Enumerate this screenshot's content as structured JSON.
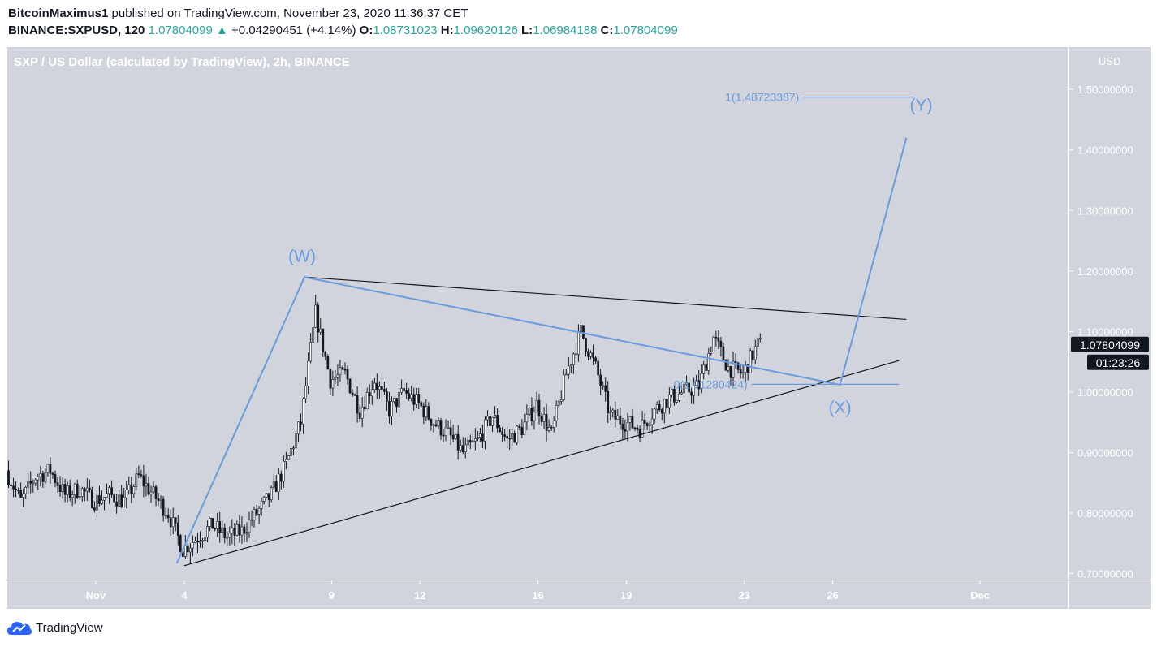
{
  "header": {
    "author": "BitcoinMaximus1",
    "published_text": "published on TradingView.com, November 23, 2020 11:36:37 CET",
    "symbol": "BINANCE:SXPUSD, 120",
    "last": "1.07804099",
    "change": "+0.04290451 (+4.14%)",
    "o_label": "O:",
    "o": "1.08731023",
    "h_label": "H:",
    "h": "1.09620126",
    "l_label": "L:",
    "l": "1.06984188",
    "c_label": "C:",
    "c": "1.07804099"
  },
  "footer": {
    "brand": "TradingView"
  },
  "colors": {
    "plot_bg": "#d1d4dc",
    "axis_bg": "#d1d4dc",
    "wave": "#6a9bde",
    "trendline": "#131722",
    "candles": "#131722",
    "label_bg": "#131722"
  },
  "chart_data": {
    "type": "candlestick",
    "title": "SXP / US Dollar (calculated by TradingView), 2h, BINANCE",
    "y_unit": "USD",
    "ylim": [
      0.69,
      1.57
    ],
    "y_ticks": [
      0.7,
      0.8,
      0.9,
      1.0,
      1.1,
      1.2,
      1.3,
      1.4,
      1.5
    ],
    "y_tick_labels": [
      "0.70000000",
      "0.80000000",
      "0.90000000",
      "1.00000000",
      "1.10000000",
      "1.20000000",
      "1.30000000",
      "1.40000000",
      "1.50000000"
    ],
    "x_range": [
      "2020-10-29",
      "2020-12-04"
    ],
    "x_ticks": [
      {
        "date": "2020-11-01",
        "label": "Nov"
      },
      {
        "date": "2020-11-04",
        "label": "4"
      },
      {
        "date": "2020-11-09",
        "label": "9"
      },
      {
        "date": "2020-11-12",
        "label": "12"
      },
      {
        "date": "2020-11-16",
        "label": "16"
      },
      {
        "date": "2020-11-19",
        "label": "19"
      },
      {
        "date": "2020-11-23",
        "label": "23"
      },
      {
        "date": "2020-11-26",
        "label": "26"
      },
      {
        "date": "2020-12-01",
        "label": "Dec"
      }
    ],
    "price_path": [
      [
        "2020-10-29 00:00",
        0.87
      ],
      [
        "2020-10-29 12:00",
        0.82
      ],
      [
        "2020-10-30 00:00",
        0.86
      ],
      [
        "2020-10-30 12:00",
        0.87
      ],
      [
        "2020-10-31 00:00",
        0.83
      ],
      [
        "2020-10-31 12:00",
        0.84
      ],
      [
        "2020-11-01 00:00",
        0.82
      ],
      [
        "2020-11-01 12:00",
        0.83
      ],
      [
        "2020-11-02 00:00",
        0.82
      ],
      [
        "2020-11-02 12:00",
        0.86
      ],
      [
        "2020-11-03 00:00",
        0.83
      ],
      [
        "2020-11-03 12:00",
        0.8
      ],
      [
        "2020-11-04 00:00",
        0.74
      ],
      [
        "2020-11-04 12:00",
        0.76
      ],
      [
        "2020-11-05 00:00",
        0.78
      ],
      [
        "2020-11-05 12:00",
        0.76
      ],
      [
        "2020-11-06 00:00",
        0.77
      ],
      [
        "2020-11-06 12:00",
        0.8
      ],
      [
        "2020-11-07 00:00",
        0.83
      ],
      [
        "2020-11-07 12:00",
        0.88
      ],
      [
        "2020-11-08 00:00",
        0.95
      ],
      [
        "2020-11-08 12:00",
        1.13
      ],
      [
        "2020-11-09 00:00",
        1.02
      ],
      [
        "2020-11-09 12:00",
        1.03
      ],
      [
        "2020-11-10 00:00",
        0.97
      ],
      [
        "2020-11-10 12:00",
        1.02
      ],
      [
        "2020-11-11 00:00",
        0.97
      ],
      [
        "2020-11-11 12:00",
        1.0
      ],
      [
        "2020-11-12 00:00",
        0.98
      ],
      [
        "2020-11-12 12:00",
        0.95
      ],
      [
        "2020-11-13 00:00",
        0.93
      ],
      [
        "2020-11-13 12:00",
        0.9
      ],
      [
        "2020-11-14 00:00",
        0.92
      ],
      [
        "2020-11-14 12:00",
        0.96
      ],
      [
        "2020-11-15 00:00",
        0.92
      ],
      [
        "2020-11-15 12:00",
        0.94
      ],
      [
        "2020-11-16 00:00",
        0.98
      ],
      [
        "2020-11-16 12:00",
        0.93
      ],
      [
        "2020-11-17 00:00",
        1.03
      ],
      [
        "2020-11-17 12:00",
        1.1
      ],
      [
        "2020-11-18 00:00",
        1.04
      ],
      [
        "2020-11-18 12:00",
        0.96
      ],
      [
        "2020-11-19 00:00",
        0.95
      ],
      [
        "2020-11-19 12:00",
        0.94
      ],
      [
        "2020-11-20 00:00",
        0.97
      ],
      [
        "2020-11-20 12:00",
        0.99
      ],
      [
        "2020-11-21 00:00",
        1.0
      ],
      [
        "2020-11-21 12:00",
        1.01
      ],
      [
        "2020-11-22 00:00",
        1.09
      ],
      [
        "2020-11-22 12:00",
        1.04
      ],
      [
        "2020-11-23 00:00",
        1.03
      ],
      [
        "2020-11-23 12:00",
        1.078
      ]
    ],
    "trendlines": [
      {
        "name": "upper",
        "from": [
          "2020-11-08 02:00",
          1.19
        ],
        "to": [
          "2020-11-28 12:00",
          1.12
        ]
      },
      {
        "name": "lower",
        "from": [
          "2020-11-04 00:00",
          0.713
        ],
        "to": [
          "2020-11-28 06:00",
          1.052
        ]
      }
    ],
    "wave_path": [
      [
        "2020-11-03 18:00",
        0.717
      ],
      [
        "2020-11-08 02:00",
        1.19
      ],
      [
        "2020-11-26 06:00",
        1.012
      ],
      [
        "2020-11-28 12:00",
        1.42
      ]
    ],
    "fib_levels": [
      {
        "label": "1(1.48723387)",
        "value": 1.48723387,
        "from": "2020-11-25 00:00",
        "to": "2020-11-28 18:00"
      },
      {
        "label": "0(1.01280424)",
        "value": 1.01280424,
        "from": "2020-11-23 06:00",
        "to": "2020-11-28 06:00"
      }
    ],
    "annotations": [
      {
        "text": "(W)",
        "date": "2020-11-08 00:00",
        "value": 1.215
      },
      {
        "text": "(X)",
        "date": "2020-11-26 06:00",
        "value": 0.965
      },
      {
        "text": "(Y)",
        "date": "2020-11-29 00:00",
        "value": 1.465
      }
    ],
    "price_label": "1.07804099",
    "countdown_label": "01:23:26"
  }
}
